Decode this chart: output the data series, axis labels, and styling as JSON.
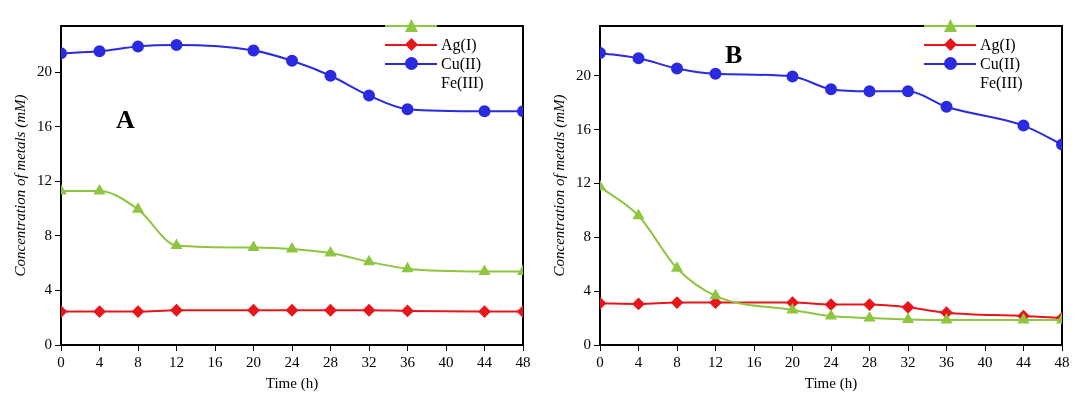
{
  "chart_data": [
    {
      "type": "line",
      "ylabel": "Concentration of metals (mM)",
      "xlabel": "Time (h)",
      "annotations": [
        "A",
        "Fe(III)"
      ],
      "legend": "top right",
      "grid": false,
      "xlim": [
        0,
        48
      ],
      "xticks": [
        0,
        4,
        8,
        12,
        16,
        20,
        24,
        28,
        32,
        36,
        40,
        44,
        48
      ],
      "ylim": [
        0,
        23.4
      ],
      "yticks": [
        0,
        4,
        8,
        12,
        16,
        20
      ],
      "x": [
        0,
        4,
        8,
        12,
        20,
        24,
        28,
        32,
        36,
        44,
        48
      ],
      "series": [
        {
          "color": "#8dc63f",
          "marker": "triangle",
          "values": [
            11.3,
            11.3,
            9.95,
            7.3,
            7.15,
            7.05,
            6.75,
            6.1,
            5.6,
            5.4,
            5.4
          ]
        },
        {
          "name": "Ag(I)",
          "color": "#e8161b",
          "marker": "diamond",
          "values": [
            2.45,
            2.45,
            2.45,
            2.55,
            2.55,
            2.55,
            2.55,
            2.55,
            2.5,
            2.45,
            2.45
          ]
        },
        {
          "name": "Cu(II)",
          "color": "#2a2ae0",
          "marker": "circle",
          "values": [
            21.4,
            21.55,
            21.9,
            22.0,
            21.6,
            20.85,
            19.75,
            18.3,
            17.3,
            17.15,
            17.15
          ]
        }
      ]
    },
    {
      "type": "line",
      "ylabel": "Concentration of metals (mM)",
      "xlabel": "Time (h)",
      "annotations": [
        "B",
        "Fe(III)"
      ],
      "legend": "top right",
      "grid": false,
      "xlim": [
        0,
        48
      ],
      "xticks": [
        0,
        4,
        8,
        12,
        16,
        20,
        24,
        28,
        32,
        36,
        40,
        44,
        48
      ],
      "ylim": [
        0,
        23.7
      ],
      "yticks": [
        0,
        4,
        8,
        12,
        16,
        20
      ],
      "x": [
        0,
        4,
        8,
        12,
        20,
        24,
        28,
        32,
        36,
        44,
        48
      ],
      "series": [
        {
          "color": "#8dc63f",
          "marker": "triangle",
          "values": [
            11.75,
            9.6,
            5.7,
            3.65,
            2.6,
            2.15,
            2.0,
            1.9,
            1.85,
            1.85,
            1.85
          ]
        },
        {
          "name": "Ag(I)",
          "color": "#e8161b",
          "marker": "diamond",
          "values": [
            3.1,
            3.05,
            3.15,
            3.15,
            3.15,
            3.0,
            3.0,
            2.8,
            2.4,
            2.15,
            2.0
          ]
        },
        {
          "name": "Cu(II)",
          "color": "#2a2ae0",
          "marker": "circle",
          "values": [
            21.7,
            21.3,
            20.55,
            20.15,
            19.95,
            19.0,
            18.85,
            18.85,
            17.7,
            16.3,
            14.9
          ]
        }
      ]
    }
  ]
}
